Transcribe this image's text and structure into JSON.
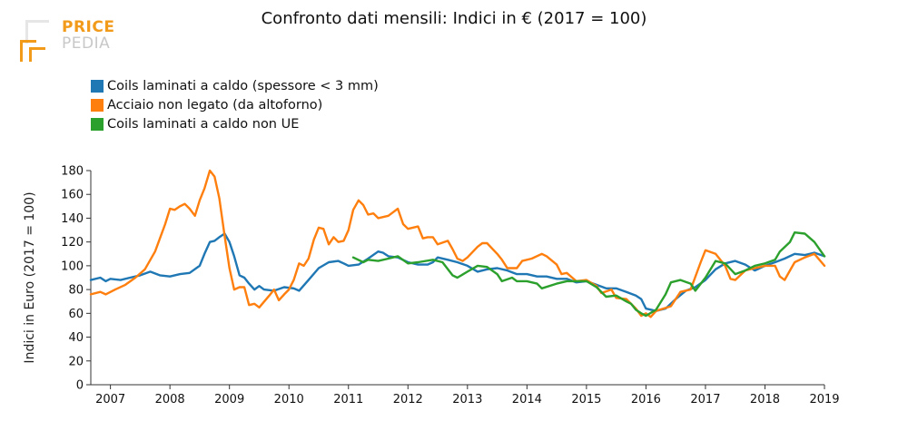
{
  "logo": {
    "line1": "PRICE",
    "line2": "PEDIA",
    "accent": "#f29a1a",
    "muted": "#c8c8c8"
  },
  "chart_data": {
    "type": "line",
    "title": "Confronto dati mensili: Indici in € (2017 = 100)",
    "ylabel": "Indici in Euro (2017 = 100)",
    "xlabel": "",
    "xlim": [
      2006.67,
      2019.0
    ],
    "ylim": [
      0,
      180
    ],
    "x_ticks": [
      "2007",
      "2008",
      "2009",
      "2010",
      "2011",
      "2012",
      "2013",
      "2014",
      "2015",
      "2016",
      "2017",
      "2018",
      "2019"
    ],
    "y_ticks": [
      0,
      20,
      40,
      60,
      80,
      100,
      120,
      140,
      160,
      180
    ],
    "legend_position": "top-left",
    "grid": false,
    "series": [
      {
        "name": "Coils laminati a caldo (spessore < 3 mm)",
        "color": "#1f77b4",
        "points": [
          [
            2006.67,
            88
          ],
          [
            2006.83,
            90
          ],
          [
            2006.92,
            87
          ],
          [
            2007.0,
            89
          ],
          [
            2007.17,
            88
          ],
          [
            2007.33,
            90
          ],
          [
            2007.5,
            92
          ],
          [
            2007.67,
            95
          ],
          [
            2007.83,
            92
          ],
          [
            2008.0,
            91
          ],
          [
            2008.17,
            93
          ],
          [
            2008.33,
            94
          ],
          [
            2008.5,
            100
          ],
          [
            2008.58,
            110
          ],
          [
            2008.67,
            120
          ],
          [
            2008.75,
            121
          ],
          [
            2008.83,
            124
          ],
          [
            2008.92,
            127
          ],
          [
            2009.0,
            120
          ],
          [
            2009.08,
            108
          ],
          [
            2009.17,
            92
          ],
          [
            2009.25,
            90
          ],
          [
            2009.33,
            85
          ],
          [
            2009.42,
            80
          ],
          [
            2009.5,
            83
          ],
          [
            2009.58,
            80
          ],
          [
            2009.75,
            79
          ],
          [
            2009.92,
            82
          ],
          [
            2010.08,
            81
          ],
          [
            2010.17,
            79
          ],
          [
            2010.33,
            88
          ],
          [
            2010.5,
            98
          ],
          [
            2010.67,
            103
          ],
          [
            2010.83,
            104
          ],
          [
            2010.92,
            102
          ],
          [
            2011.0,
            100
          ],
          [
            2011.17,
            101
          ],
          [
            2011.33,
            106
          ],
          [
            2011.5,
            112
          ],
          [
            2011.58,
            111
          ],
          [
            2011.67,
            108
          ],
          [
            2011.83,
            107
          ],
          [
            2012.0,
            103
          ],
          [
            2012.17,
            101
          ],
          [
            2012.33,
            101
          ],
          [
            2012.42,
            103
          ],
          [
            2012.5,
            107
          ],
          [
            2012.67,
            105
          ],
          [
            2012.83,
            103
          ],
          [
            2013.0,
            100
          ],
          [
            2013.17,
            95
          ],
          [
            2013.33,
            97
          ],
          [
            2013.5,
            98
          ],
          [
            2013.67,
            96
          ],
          [
            2013.83,
            93
          ],
          [
            2014.0,
            93
          ],
          [
            2014.17,
            91
          ],
          [
            2014.33,
            91
          ],
          [
            2014.5,
            89
          ],
          [
            2014.67,
            89
          ],
          [
            2014.83,
            86
          ],
          [
            2015.0,
            87
          ],
          [
            2015.17,
            84
          ],
          [
            2015.33,
            81
          ],
          [
            2015.5,
            81
          ],
          [
            2015.67,
            78
          ],
          [
            2015.83,
            75
          ],
          [
            2015.92,
            72
          ],
          [
            2016.0,
            64
          ],
          [
            2016.17,
            62
          ],
          [
            2016.33,
            64
          ],
          [
            2016.5,
            72
          ],
          [
            2016.67,
            79
          ],
          [
            2016.83,
            82
          ],
          [
            2017.0,
            88
          ],
          [
            2017.17,
            97
          ],
          [
            2017.33,
            102
          ],
          [
            2017.5,
            104
          ],
          [
            2017.67,
            101
          ],
          [
            2017.83,
            96
          ],
          [
            2018.0,
            100
          ],
          [
            2018.17,
            103
          ],
          [
            2018.33,
            106
          ],
          [
            2018.5,
            110
          ],
          [
            2018.67,
            109
          ],
          [
            2018.83,
            111
          ],
          [
            2019.0,
            108
          ]
        ]
      },
      {
        "name": "Acciaio non legato (da altoforno)",
        "color": "#ff7f0e",
        "points": [
          [
            2006.67,
            76
          ],
          [
            2006.83,
            78
          ],
          [
            2006.92,
            76
          ],
          [
            2007.08,
            80
          ],
          [
            2007.25,
            84
          ],
          [
            2007.42,
            90
          ],
          [
            2007.58,
            97
          ],
          [
            2007.75,
            112
          ],
          [
            2007.92,
            135
          ],
          [
            2008.0,
            148
          ],
          [
            2008.08,
            147
          ],
          [
            2008.17,
            150
          ],
          [
            2008.25,
            152
          ],
          [
            2008.33,
            148
          ],
          [
            2008.42,
            142
          ],
          [
            2008.5,
            155
          ],
          [
            2008.58,
            165
          ],
          [
            2008.67,
            180
          ],
          [
            2008.75,
            175
          ],
          [
            2008.83,
            157
          ],
          [
            2008.92,
            125
          ],
          [
            2009.0,
            98
          ],
          [
            2009.08,
            80
          ],
          [
            2009.17,
            82
          ],
          [
            2009.25,
            82
          ],
          [
            2009.33,
            67
          ],
          [
            2009.42,
            68
          ],
          [
            2009.5,
            65
          ],
          [
            2009.67,
            75
          ],
          [
            2009.75,
            80
          ],
          [
            2009.83,
            71
          ],
          [
            2009.92,
            76
          ],
          [
            2010.0,
            80
          ],
          [
            2010.08,
            88
          ],
          [
            2010.17,
            102
          ],
          [
            2010.25,
            100
          ],
          [
            2010.33,
            106
          ],
          [
            2010.42,
            122
          ],
          [
            2010.5,
            132
          ],
          [
            2010.58,
            131
          ],
          [
            2010.67,
            118
          ],
          [
            2010.75,
            124
          ],
          [
            2010.83,
            120
          ],
          [
            2010.92,
            121
          ],
          [
            2011.0,
            130
          ],
          [
            2011.08,
            147
          ],
          [
            2011.17,
            155
          ],
          [
            2011.25,
            151
          ],
          [
            2011.33,
            143
          ],
          [
            2011.42,
            144
          ],
          [
            2011.5,
            140
          ],
          [
            2011.67,
            142
          ],
          [
            2011.75,
            145
          ],
          [
            2011.83,
            148
          ],
          [
            2011.92,
            135
          ],
          [
            2012.0,
            131
          ],
          [
            2012.17,
            133
          ],
          [
            2012.25,
            123
          ],
          [
            2012.33,
            124
          ],
          [
            2012.42,
            124
          ],
          [
            2012.5,
            118
          ],
          [
            2012.67,
            121
          ],
          [
            2012.75,
            114
          ],
          [
            2012.83,
            106
          ],
          [
            2012.92,
            104
          ],
          [
            2013.0,
            107
          ],
          [
            2013.17,
            116
          ],
          [
            2013.25,
            119
          ],
          [
            2013.33,
            119
          ],
          [
            2013.5,
            110
          ],
          [
            2013.58,
            105
          ],
          [
            2013.67,
            98
          ],
          [
            2013.83,
            98
          ],
          [
            2013.92,
            104
          ],
          [
            2014.08,
            106
          ],
          [
            2014.25,
            110
          ],
          [
            2014.33,
            108
          ],
          [
            2014.5,
            101
          ],
          [
            2014.58,
            93
          ],
          [
            2014.67,
            94
          ],
          [
            2014.83,
            87
          ],
          [
            2015.0,
            88
          ],
          [
            2015.17,
            83
          ],
          [
            2015.25,
            77
          ],
          [
            2015.42,
            80
          ],
          [
            2015.5,
            73
          ],
          [
            2015.67,
            72
          ],
          [
            2015.83,
            64
          ],
          [
            2015.92,
            58
          ],
          [
            2016.0,
            60
          ],
          [
            2016.08,
            57
          ],
          [
            2016.17,
            62
          ],
          [
            2016.42,
            66
          ],
          [
            2016.58,
            78
          ],
          [
            2016.75,
            80
          ],
          [
            2016.92,
            103
          ],
          [
            2017.0,
            113
          ],
          [
            2017.17,
            110
          ],
          [
            2017.33,
            100
          ],
          [
            2017.42,
            89
          ],
          [
            2017.5,
            88
          ],
          [
            2017.67,
            96
          ],
          [
            2017.83,
            98
          ],
          [
            2018.0,
            100
          ],
          [
            2018.17,
            100
          ],
          [
            2018.25,
            91
          ],
          [
            2018.33,
            88
          ],
          [
            2018.42,
            96
          ],
          [
            2018.5,
            103
          ],
          [
            2018.67,
            107
          ],
          [
            2018.83,
            110
          ],
          [
            2019.0,
            100
          ]
        ]
      },
      {
        "name": "Coils laminati a caldo non UE",
        "color": "#2ca02c",
        "points": [
          [
            2011.08,
            107
          ],
          [
            2011.25,
            103
          ],
          [
            2011.33,
            105
          ],
          [
            2011.5,
            104
          ],
          [
            2011.67,
            106
          ],
          [
            2011.83,
            108
          ],
          [
            2012.0,
            102
          ],
          [
            2012.17,
            103
          ],
          [
            2012.42,
            105
          ],
          [
            2012.58,
            103
          ],
          [
            2012.75,
            92
          ],
          [
            2012.83,
            90
          ],
          [
            2013.0,
            95
          ],
          [
            2013.17,
            100
          ],
          [
            2013.33,
            99
          ],
          [
            2013.5,
            93
          ],
          [
            2013.58,
            87
          ],
          [
            2013.75,
            90
          ],
          [
            2013.83,
            87
          ],
          [
            2014.0,
            87
          ],
          [
            2014.17,
            85
          ],
          [
            2014.25,
            81
          ],
          [
            2014.5,
            85
          ],
          [
            2014.67,
            87
          ],
          [
            2014.83,
            87
          ],
          [
            2015.0,
            87
          ],
          [
            2015.17,
            82
          ],
          [
            2015.33,
            74
          ],
          [
            2015.5,
            75
          ],
          [
            2015.67,
            70
          ],
          [
            2015.75,
            68
          ],
          [
            2015.83,
            63
          ],
          [
            2015.92,
            60
          ],
          [
            2016.0,
            58
          ],
          [
            2016.17,
            63
          ],
          [
            2016.33,
            76
          ],
          [
            2016.42,
            86
          ],
          [
            2016.58,
            88
          ],
          [
            2016.75,
            85
          ],
          [
            2016.83,
            79
          ],
          [
            2017.0,
            90
          ],
          [
            2017.17,
            104
          ],
          [
            2017.33,
            102
          ],
          [
            2017.5,
            93
          ],
          [
            2017.67,
            96
          ],
          [
            2017.83,
            100
          ],
          [
            2018.0,
            102
          ],
          [
            2018.17,
            105
          ],
          [
            2018.25,
            112
          ],
          [
            2018.42,
            120
          ],
          [
            2018.5,
            128
          ],
          [
            2018.67,
            127
          ],
          [
            2018.83,
            120
          ],
          [
            2019.0,
            108
          ]
        ]
      }
    ]
  }
}
